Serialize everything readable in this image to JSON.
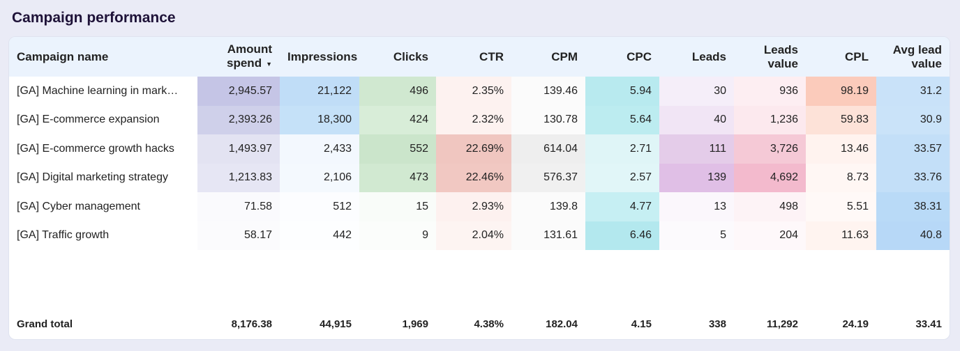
{
  "title": "Campaign performance",
  "columns": [
    "Campaign name",
    "Amount spend",
    "Impressions",
    "Clicks",
    "CTR",
    "CPM",
    "CPC",
    "Leads",
    "Leads value",
    "CPL",
    "Avg lead value"
  ],
  "sorted_column": "Amount spend",
  "sort_direction": "descending",
  "rows": [
    {
      "cells": [
        "[GA] Machine learning in mark…",
        "2,945.57",
        "21,122",
        "496",
        "2.35%",
        "139.46",
        "5.94",
        "30",
        "936",
        "98.19",
        "31.2"
      ],
      "colors": [
        "#ffffff",
        "#c5c5e6",
        "#c0ddf7",
        "#d0e8d0",
        "#fdf2f0",
        "#fbfbfb",
        "#b8eaef",
        "#f5eef9",
        "#fdeef2",
        "#fbcbbb",
        "#c9e2f9"
      ]
    },
    {
      "cells": [
        "[GA] E-commerce expansion",
        "2,393.26",
        "18,300",
        "424",
        "2.32%",
        "130.78",
        "5.64",
        "40",
        "1,236",
        "59.83",
        "30.9"
      ],
      "colors": [
        "#ffffff",
        "#cfd0ea",
        "#c5e1f8",
        "#d8edd8",
        "#fdf2f0",
        "#fbfbfb",
        "#bcecf0",
        "#f1e5f5",
        "#fce9ee",
        "#fde2d8",
        "#cae3f9"
      ]
    },
    {
      "cells": [
        "[GA] E-commerce growth hacks",
        "1,493.97",
        "2,433",
        "552",
        "22.69%",
        "614.04",
        "2.71",
        "111",
        "3,726",
        "13.46",
        "33.57"
      ],
      "colors": [
        "#ffffff",
        "#e3e3f2",
        "#f3f8fe",
        "#cbe5cb",
        "#f0c6c0",
        "#eeeeee",
        "#dff5f7",
        "#e4cce9",
        "#f5c9d6",
        "#fff3ef",
        "#c3dff8"
      ]
    },
    {
      "cells": [
        "[GA] Digital marketing strategy",
        "1,213.83",
        "2,106",
        "473",
        "22.46%",
        "576.37",
        "2.57",
        "139",
        "4,692",
        "8.73",
        "33.76"
      ],
      "colors": [
        "#ffffff",
        "#e6e6f4",
        "#f4f9fe",
        "#d1e9d1",
        "#f1c8c2",
        "#f0f0f0",
        "#e1f6f8",
        "#e0bfe6",
        "#f3bacd",
        "#fff7f4",
        "#c3dff8"
      ]
    },
    {
      "cells": [
        "[GA] Cyber management",
        "71.58",
        "512",
        "15",
        "2.93%",
        "139.8",
        "4.77",
        "13",
        "498",
        "5.51",
        "38.31"
      ],
      "colors": [
        "#ffffff",
        "#fafafd",
        "#fcfdff",
        "#f9fcf9",
        "#fdf1ef",
        "#fbfbfb",
        "#c6eff3",
        "#fbf7fc",
        "#fdf3f6",
        "#fff9f7",
        "#b9daf7"
      ]
    },
    {
      "cells": [
        "[GA] Traffic growth",
        "58.17",
        "442",
        "9",
        "2.04%",
        "131.61",
        "6.46",
        "5",
        "204",
        "11.63",
        "40.8"
      ],
      "colors": [
        "#ffffff",
        "#fbfbfd",
        "#fdfeff",
        "#fbfdfb",
        "#fdf4f2",
        "#fbfbfb",
        "#b3e8ee",
        "#fcfafd",
        "#fef8fa",
        "#fff4f0",
        "#b7d8f7"
      ]
    }
  ],
  "grand_total": [
    "Grand total",
    "8,176.38",
    "44,915",
    "1,969",
    "4.38%",
    "182.04",
    "4.15",
    "338",
    "11,292",
    "24.19",
    "33.41"
  ]
}
